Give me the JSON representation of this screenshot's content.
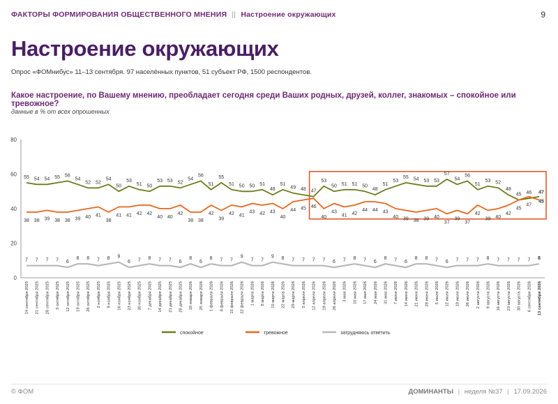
{
  "header": {
    "section": "ФАКТОРЫ ФОРМИРОВАНИЯ ОБЩЕСТВЕННОГО МНЕНИЯ",
    "separator": "||",
    "subsection": "Настроение окружающих",
    "page_number": "9"
  },
  "title": "Настроение окружающих",
  "survey_info": "Опрос «ФОМнибус» 11–13 сентября. 97 населённых пунктов, 51 субъект РФ, 1500 респондентов.",
  "question": "Какое настроение, по Вашему мнению, преобладает сегодня среди Ваших родных, друзей, коллег, знакомых – спокойное или тревожное?",
  "note": "данные в % от всех опрошенных",
  "footer": {
    "copyright": "© ФОМ",
    "brand": "ДОМИНАНТЫ",
    "sep": "|",
    "week": "неделя №37",
    "date": "17.09.2026"
  },
  "colors": {
    "calm": "#6b7d1c",
    "anxious": "#e8661c",
    "undecided": "#b8b8b8",
    "highlight_box": "#e05a2b"
  },
  "chart_data": {
    "type": "line",
    "ylim": [
      0,
      80
    ],
    "yticks": [
      0,
      20,
      40,
      60,
      80
    ],
    "grid": false,
    "legend_position": "bottom",
    "highlight_range": [
      "12 апреля 2026",
      "13 сентября 2026"
    ],
    "categories": [
      "14 сентября 2025",
      "21 сентября 2025",
      "28 сентября 2025",
      "5 октября 2025",
      "12 октября 2025",
      "19 октября 2025",
      "26 октября 2025",
      "2 ноября 2025",
      "9 ноября 2025",
      "16 ноября 2025",
      "23 ноября 2025",
      "30 ноября 2025",
      "7 декабря 2025",
      "14 декабря 2025",
      "21 декабря 2025",
      "28 декабря 2025",
      "18 января 2026",
      "25 января 2026",
      "1 февраля 2026",
      "8 февраля 2026",
      "15 февраля 2026",
      "22 февраля 2026",
      "1 марта 2026",
      "8 марта 2026",
      "15 марта 2026",
      "22 марта 2026",
      "29 марта 2026",
      "5 апреля 2026",
      "12 апреля 2026",
      "19 апреля 2026",
      "26 апреля 2026",
      "3 мая 2026",
      "10 мая 2026",
      "17 мая 2026",
      "24 мая 2026",
      "31 мая 2026",
      "7 июня 2026",
      "14 июня 2026",
      "21 июня 2026",
      "28 июня 2026",
      "5 июля 2026",
      "12 июля 2026",
      "19 июля 2026",
      "26 июля 2026",
      "2 августа 2026",
      "9 августа 2026",
      "16 августа 2026",
      "23 августа 2026",
      "30 августа 2026",
      "6 сентября 2026",
      "13 сентября 2026"
    ],
    "series": [
      {
        "name": "спокойное",
        "values": [
          55,
          54,
          54,
          55,
          56,
          54,
          52,
          52,
          54,
          50,
          53,
          51,
          50,
          53,
          53,
          52,
          54,
          56,
          51,
          55,
          51,
          50,
          50,
          51,
          48,
          51,
          49,
          48,
          47,
          53,
          50,
          51,
          51,
          50,
          48,
          51,
          53,
          55,
          54,
          53,
          53,
          57,
          54,
          56,
          51,
          53,
          52,
          48,
          45,
          46,
          47
        ]
      },
      {
        "name": "тревожное",
        "values": [
          38,
          38,
          39,
          38,
          38,
          39,
          40,
          41,
          38,
          41,
          41,
          42,
          42,
          40,
          40,
          42,
          38,
          38,
          42,
          39,
          42,
          41,
          43,
          42,
          43,
          40,
          44,
          45,
          46,
          40,
          43,
          41,
          42,
          44,
          44,
          43,
          40,
          39,
          38,
          39,
          40,
          37,
          39,
          37,
          42,
          39,
          40,
          42,
          45,
          47,
          45
        ]
      },
      {
        "name": "затрудняюсь ответить",
        "values": [
          7,
          7,
          7,
          7,
          6,
          8,
          8,
          7,
          8,
          9,
          6,
          7,
          8,
          7,
          7,
          6,
          8,
          6,
          8,
          7,
          7,
          9,
          7,
          7,
          9,
          8,
          7,
          7,
          7,
          7,
          6,
          7,
          8,
          7,
          6,
          8,
          7,
          6,
          8,
          8,
          7,
          6,
          7,
          7,
          7,
          8,
          7,
          7,
          7,
          7,
          8
        ]
      }
    ]
  }
}
